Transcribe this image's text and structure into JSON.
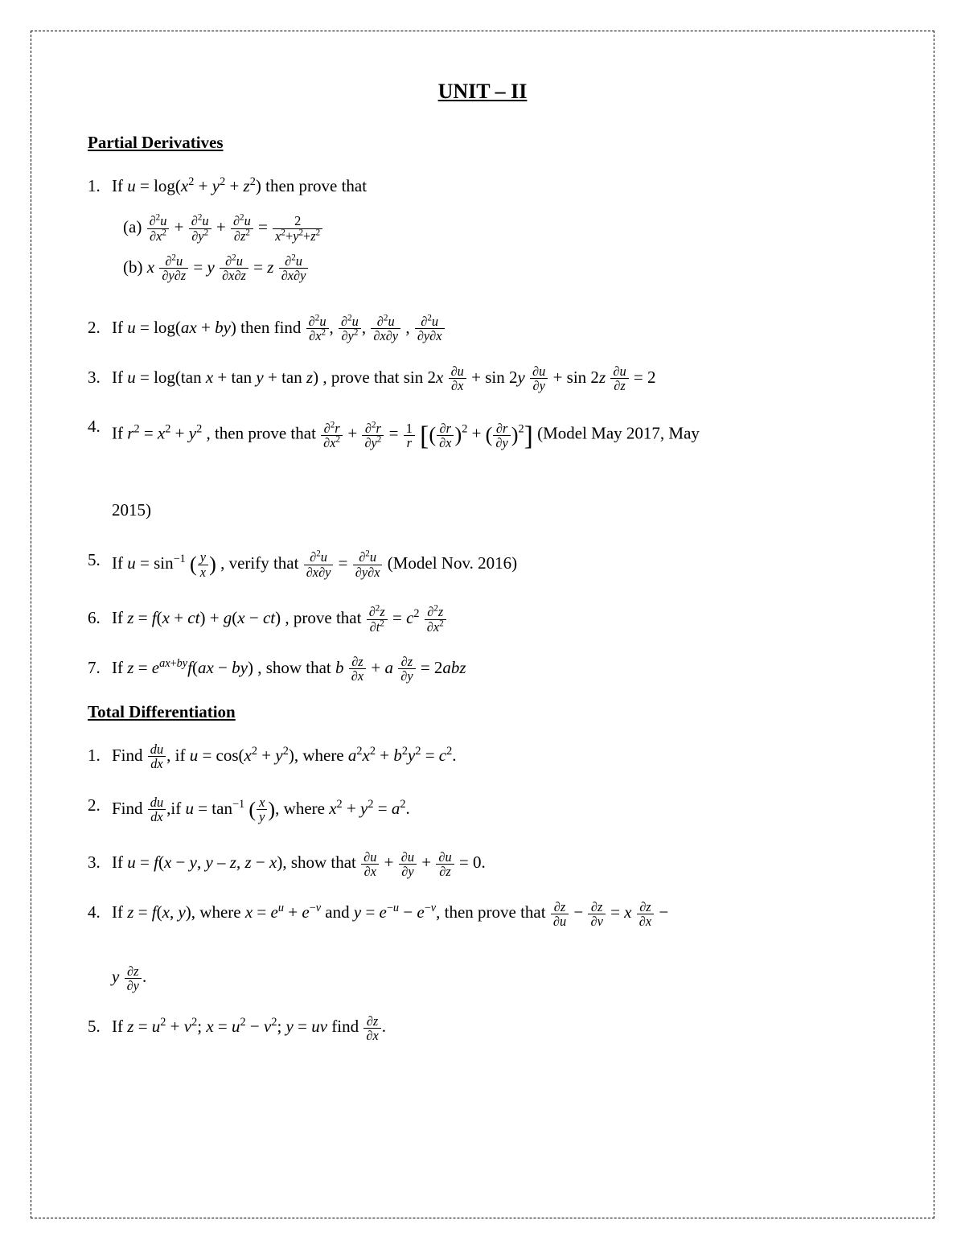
{
  "unit_title": "UNIT – II",
  "section1": {
    "title": "Partial Derivatives",
    "problems": {
      "p1": {
        "num": "1.",
        "intro_a": "If ",
        "intro_b": " then prove that",
        "subA_label": "(a) ",
        "subB_label": "(b) "
      },
      "p2": {
        "num": "2.",
        "intro_a": "If ",
        "intro_b": " then find "
      },
      "p3": {
        "num": "3.",
        "intro_a": "If ",
        "intro_b": ", prove that "
      },
      "p4": {
        "num": "4.",
        "intro_a": "If ",
        "intro_b": ", then prove that ",
        "note": " (Model May 2017, May",
        "note2": "2015)"
      },
      "p5": {
        "num": "5.",
        "intro_a": "If ",
        "intro_b": ", verify that ",
        "note": " (Model Nov. 2016)"
      },
      "p6": {
        "num": "6.",
        "intro_a": "If ",
        "intro_b": ", prove that "
      },
      "p7": {
        "num": "7.",
        "intro_a": "If ",
        "intro_b": ", show that "
      }
    }
  },
  "section2": {
    "title": "Total Differentiation",
    "problems": {
      "p1": {
        "num": "1.",
        "a": "Find ",
        "b": ", if ",
        "c": ", where "
      },
      "p2": {
        "num": "2.",
        "a": "Find ",
        "b": ",if ",
        "c": ", where "
      },
      "p3": {
        "num": "3.",
        "a": "If ",
        "b": ", show that "
      },
      "p4": {
        "num": "4.",
        "a": "If ",
        "b": ", where ",
        "c": " and   ",
        "d": ", then prove that "
      },
      "p5": {
        "num": "5.",
        "a": "If ",
        "b": " find  "
      }
    }
  }
}
